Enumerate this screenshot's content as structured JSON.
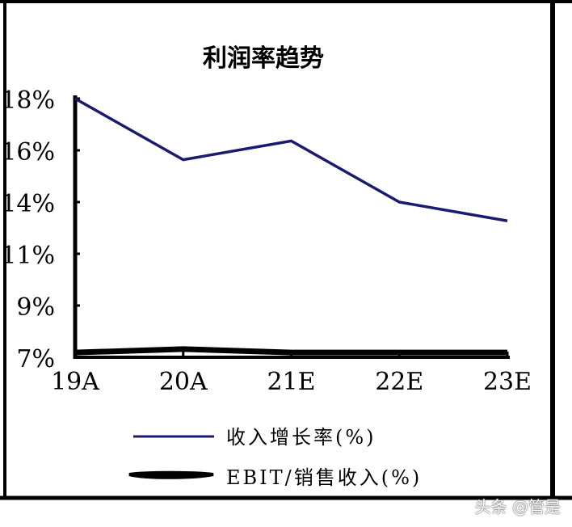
{
  "chart_data": {
    "type": "line",
    "title": "利润率趋势",
    "categories": [
      "19A",
      "20A",
      "21E",
      "22E",
      "23E"
    ],
    "y_ticks": [
      "18%",
      "16%",
      "14%",
      "11%",
      "9%",
      "7%"
    ],
    "ylim": [
      7,
      18
    ],
    "grid": false,
    "legend_position": "bottom",
    "series": [
      {
        "name": "收入增长率(%)",
        "color": "#1a1a6e",
        "values": [
          18,
          15.4,
          16.2,
          13.6,
          12.8
        ]
      },
      {
        "name": "EBIT/销售收入(%)",
        "color": "#000000",
        "values": [
          7.2,
          7.35,
          7.2,
          7.2,
          7.2
        ]
      }
    ]
  },
  "watermark": "头条 @管是"
}
